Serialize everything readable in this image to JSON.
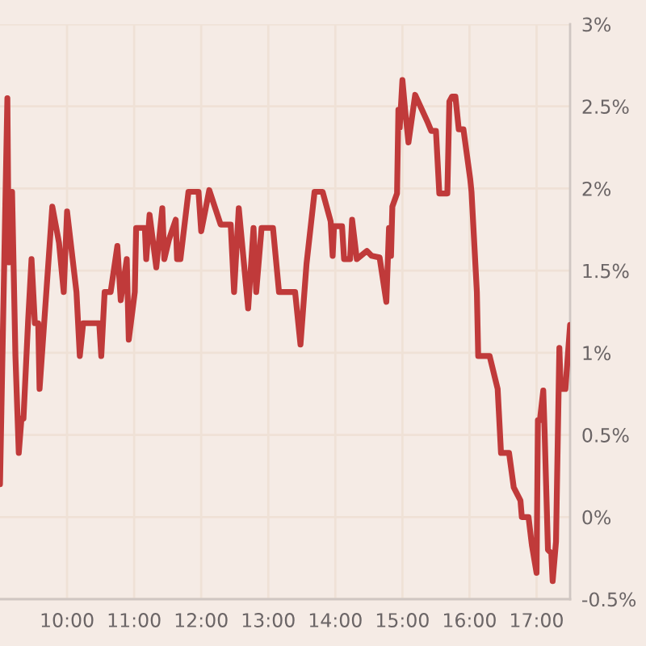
{
  "chart_data": {
    "type": "line",
    "x": [
      9.0,
      9.11,
      9.13,
      9.18,
      9.23,
      9.28,
      9.32,
      9.35,
      9.42,
      9.47,
      9.52,
      9.57,
      9.59,
      9.78,
      9.88,
      9.95,
      10.0,
      10.14,
      10.19,
      10.24,
      10.48,
      10.51,
      10.56,
      10.65,
      10.75,
      10.8,
      10.89,
      10.92,
      11.01,
      11.03,
      11.16,
      11.18,
      11.23,
      11.33,
      11.42,
      11.45,
      11.52,
      11.62,
      11.64,
      11.69,
      11.81,
      11.96,
      12.0,
      12.12,
      12.29,
      12.44,
      12.49,
      12.56,
      12.7,
      12.78,
      12.82,
      12.9,
      13.07,
      13.16,
      13.4,
      13.48,
      13.57,
      13.69,
      13.81,
      13.93,
      13.96,
      13.98,
      14.1,
      14.13,
      14.22,
      14.25,
      14.32,
      14.47,
      14.54,
      14.66,
      14.76,
      14.8,
      14.83,
      14.85,
      14.92,
      14.94,
      14.96,
      15.0,
      15.04,
      15.09,
      15.19,
      15.38,
      15.43,
      15.5,
      15.55,
      15.67,
      15.7,
      15.74,
      15.79,
      15.84,
      15.91,
      16.01,
      16.03,
      16.11,
      16.13,
      16.3,
      16.42,
      16.47,
      16.59,
      16.66,
      16.76,
      16.78,
      16.88,
      16.93,
      17.0,
      17.02,
      17.05,
      17.1,
      17.12,
      17.17,
      17.22,
      17.24,
      17.29,
      17.34,
      17.36,
      17.43,
      17.5
    ],
    "series": [
      {
        "color": "#c03a3a",
        "values": [
          0.2,
          2.55,
          1.55,
          1.98,
          0.98,
          0.39,
          0.6,
          0.6,
          1.2,
          1.57,
          1.18,
          1.18,
          0.78,
          1.89,
          1.67,
          1.37,
          1.86,
          1.37,
          0.98,
          1.18,
          1.18,
          0.98,
          1.37,
          1.37,
          1.65,
          1.32,
          1.57,
          1.08,
          1.37,
          1.76,
          1.76,
          1.57,
          1.84,
          1.52,
          1.88,
          1.57,
          1.69,
          1.81,
          1.57,
          1.57,
          1.98,
          1.98,
          1.74,
          1.99,
          1.78,
          1.78,
          1.37,
          1.88,
          1.27,
          1.76,
          1.37,
          1.76,
          1.76,
          1.37,
          1.37,
          1.05,
          1.54,
          1.98,
          1.98,
          1.8,
          1.59,
          1.77,
          1.77,
          1.57,
          1.57,
          1.81,
          1.57,
          1.62,
          1.59,
          1.58,
          1.31,
          1.76,
          1.59,
          1.89,
          1.97,
          2.48,
          2.37,
          2.66,
          2.48,
          2.28,
          2.57,
          2.4,
          2.35,
          2.35,
          1.97,
          1.97,
          2.53,
          2.56,
          2.56,
          2.36,
          2.36,
          2.06,
          1.98,
          1.37,
          0.98,
          0.98,
          0.78,
          0.39,
          0.39,
          0.18,
          0.1,
          0.0,
          0.0,
          -0.17,
          -0.34,
          0.59,
          0.59,
          0.77,
          0.52,
          -0.2,
          -0.22,
          -0.39,
          -0.15,
          1.03,
          0.78,
          0.78,
          1.17
        ]
      }
    ],
    "xlim": [
      9,
      17.5
    ],
    "xticks": [
      {
        "value": 10,
        "label": "10:00"
      },
      {
        "value": 11,
        "label": "11:00"
      },
      {
        "value": 12,
        "label": "12:00"
      },
      {
        "value": 13,
        "label": "13:00"
      },
      {
        "value": 14,
        "label": "14:00"
      },
      {
        "value": 15,
        "label": "15:00"
      },
      {
        "value": 16,
        "label": "16:00"
      },
      {
        "value": 17,
        "label": "17:00"
      }
    ],
    "ylim": [
      -0.5,
      3
    ],
    "yticks": [
      {
        "value": -0.5,
        "label": "-0.5%"
      },
      {
        "value": 0,
        "label": "0%"
      },
      {
        "value": 0.5,
        "label": "0.5%"
      },
      {
        "value": 1,
        "label": "1%"
      },
      {
        "value": 1.5,
        "label": "1.5%"
      },
      {
        "value": 2,
        "label": "2%"
      },
      {
        "value": 2.5,
        "label": "2.5%"
      },
      {
        "value": 3,
        "label": "3%"
      }
    ],
    "grid": true,
    "line_style": "solid"
  }
}
